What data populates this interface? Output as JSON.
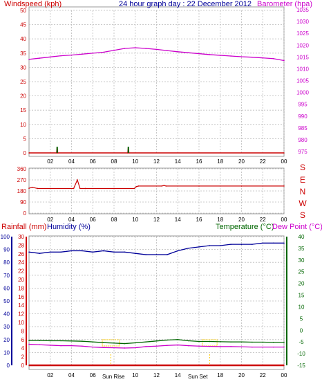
{
  "title": "24 hour graph day : 22 December 2012",
  "colors": {
    "wind": "#cc0000",
    "baro": "#cc00cc",
    "humidity": "#000099",
    "temperature": "#006600",
    "dewpoint": "#cc00cc",
    "rain": "#cc0000",
    "sun": "#ffcc00",
    "grid": "#cccccc",
    "frame": "#999999"
  },
  "x_ticks": [
    "02",
    "04",
    "06",
    "08",
    "10",
    "12",
    "14",
    "16",
    "18",
    "20",
    "22",
    "00"
  ],
  "panel_top": {
    "left_label": "Windspeed (kph)",
    "right_label": "Barometer (hpa)",
    "left_ticks": [
      "0",
      "5",
      "10",
      "15",
      "20",
      "25",
      "30",
      "35",
      "40",
      "45",
      "50"
    ],
    "right_ticks": [
      "975",
      "980",
      "985",
      "990",
      "995",
      "1000",
      "1005",
      "1010",
      "1015",
      "1020",
      "1025",
      "1030",
      "1035"
    ]
  },
  "panel_dir": {
    "left_ticks": [
      "0",
      "90",
      "180",
      "270",
      "360"
    ],
    "right_labels": [
      "S",
      "E",
      "N",
      "W",
      "S"
    ]
  },
  "panel_bottom": {
    "rain_label": "Rainfall (mm)",
    "humidity_label": "Humidity (%)",
    "temp_label": "Temperature (°C)",
    "dew_label": "Dew Point (°C)",
    "humidity_ticks": [
      "0",
      "10",
      "20",
      "30",
      "40",
      "50",
      "60",
      "70",
      "80",
      "90",
      "100"
    ],
    "rain_ticks": [
      "0",
      "2",
      "4",
      "6",
      "8",
      "10",
      "12",
      "14",
      "16",
      "18",
      "20",
      "22",
      "24",
      "26",
      "28",
      "30"
    ],
    "temp_ticks": [
      "-15",
      "-10",
      "-5",
      "0",
      "5",
      "10",
      "15",
      "20",
      "25",
      "30",
      "35",
      "40"
    ],
    "sunrise_label": "Sun Rise",
    "sunset_label": "Sun Set"
  },
  "chart_data": [
    {
      "type": "line",
      "title": "24 hour graph day : 22 December 2012",
      "ylabel": "Windspeed (kph)",
      "ylabel_right": "Barometer (hpa)",
      "ylim": [
        0,
        50
      ],
      "ylim_right": [
        975,
        1035
      ],
      "grid": true,
      "series": [
        {
          "name": "Barometer (hpa)",
          "axis": "right",
          "x": [
            0,
            1,
            2,
            3,
            4,
            5,
            6,
            7,
            8,
            9,
            10,
            11,
            12,
            13,
            14,
            15,
            16,
            17,
            18,
            19,
            20,
            21,
            22,
            23,
            24
          ],
          "values": [
            1014.0,
            1014.5,
            1015.0,
            1015.5,
            1015.8,
            1016.2,
            1016.6,
            1017.0,
            1017.8,
            1018.6,
            1018.9,
            1018.6,
            1018.2,
            1017.7,
            1017.2,
            1016.8,
            1016.4,
            1016.0,
            1015.7,
            1015.4,
            1015.1,
            1014.9,
            1014.6,
            1014.3,
            1013.5
          ]
        },
        {
          "name": "Windspeed (kph)",
          "axis": "left",
          "x": [
            0,
            2.6,
            2.65,
            2.7,
            9.3,
            9.35,
            9.4,
            24
          ],
          "values": [
            0,
            0,
            2,
            0,
            0,
            2,
            0,
            0
          ]
        }
      ]
    },
    {
      "type": "line",
      "ylabel": "Wind direction",
      "ylim": [
        0,
        360
      ],
      "grid": true,
      "series": [
        {
          "name": "Wind direction",
          "x": [
            0,
            0.3,
            0.8,
            2,
            4.2,
            4.55,
            4.8,
            5.3,
            8,
            9.9,
            10.1,
            10.3,
            12.5,
            12.7,
            12.9,
            16,
            20,
            24
          ],
          "values": [
            202,
            210,
            200,
            200,
            200,
            270,
            200,
            200,
            200,
            200,
            215,
            220,
            220,
            225,
            220,
            220,
            220,
            220
          ]
        }
      ]
    },
    {
      "type": "line",
      "ylabel": "Humidity (%)",
      "ylabel_right": "Temperature (°C)",
      "ylim": [
        0,
        100
      ],
      "ylim_right": [
        -15,
        40
      ],
      "grid": true,
      "series": [
        {
          "name": "Humidity (%)",
          "axis": "left",
          "x": [
            0,
            1,
            2,
            3,
            4,
            5,
            6,
            7,
            8,
            9,
            10,
            11,
            12,
            13,
            14,
            15,
            16,
            17,
            18,
            19,
            20,
            21,
            22,
            23,
            24
          ],
          "values": [
            88,
            87,
            88,
            88,
            89,
            89,
            88,
            89,
            88,
            88,
            87,
            86,
            86,
            86,
            89,
            91,
            92,
            93,
            93,
            94,
            94,
            94,
            95,
            95,
            95
          ]
        },
        {
          "name": "Temperature (°C)",
          "axis": "right",
          "x": [
            0,
            1,
            2,
            3,
            4,
            5,
            6,
            7,
            8,
            9,
            10,
            11,
            12,
            13,
            14,
            15,
            16,
            17,
            18,
            19,
            20,
            21,
            22,
            23,
            24
          ],
          "values": [
            -4.4,
            -4.4,
            -4.5,
            -4.5,
            -4.6,
            -4.7,
            -5.0,
            -5.3,
            -5.5,
            -5.7,
            -5.4,
            -5.0,
            -4.6,
            -4.2,
            -4.0,
            -4.5,
            -4.8,
            -4.8,
            -4.9,
            -5.0,
            -5.0,
            -5.1,
            -5.1,
            -5.2,
            -5.2
          ]
        },
        {
          "name": "Dew Point (°C)",
          "axis": "right",
          "x": [
            0,
            1,
            2,
            3,
            4,
            5,
            6,
            7,
            8,
            9,
            10,
            11,
            12,
            13,
            14,
            15,
            16,
            17,
            18,
            19,
            20,
            21,
            22,
            23,
            24
          ],
          "values": [
            -6.0,
            -6.2,
            -6.4,
            -6.6,
            -6.6,
            -6.8,
            -7.2,
            -7.4,
            -7.5,
            -7.6,
            -7.5,
            -7.0,
            -6.8,
            -6.5,
            -6.3,
            -6.6,
            -6.8,
            -6.9,
            -7.0,
            -7.0,
            -7.1,
            -7.2,
            -7.2,
            -7.2,
            -7.2
          ]
        },
        {
          "name": "Rainfall (mm)",
          "axis": "rain",
          "x": [
            0,
            24
          ],
          "values": [
            0,
            0
          ]
        }
      ]
    }
  ]
}
